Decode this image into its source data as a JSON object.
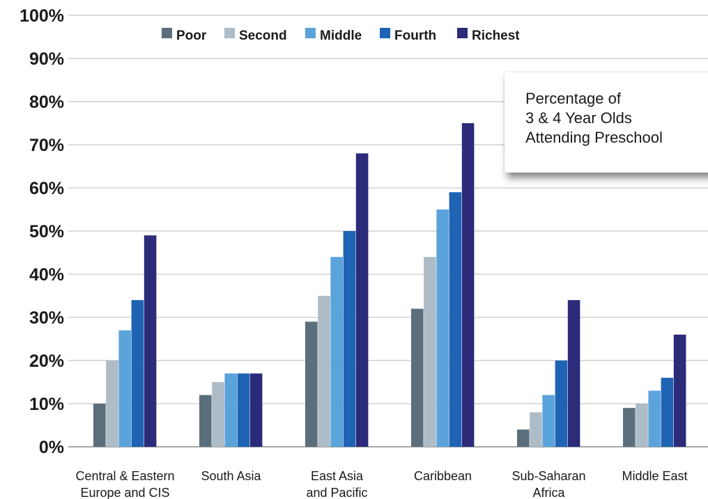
{
  "chart_data": {
    "type": "bar",
    "categories": [
      "Central & Eastern\nEurope and CIS",
      "South Asia",
      "East Asia\nand Pacific",
      "Caribbean",
      "Sub-Saharan\nAfrica",
      "Middle East"
    ],
    "series": [
      {
        "name": "Poor",
        "color": "#5b6e7b",
        "values": [
          10,
          12,
          29,
          32,
          4,
          9
        ]
      },
      {
        "name": "Second",
        "color": "#adbcc7",
        "values": [
          20,
          15,
          35,
          44,
          8,
          10
        ]
      },
      {
        "name": "Middle",
        "color": "#5ba3db",
        "values": [
          27,
          17,
          44,
          55,
          12,
          13
        ]
      },
      {
        "name": "Fourth",
        "color": "#1e63b4",
        "values": [
          34,
          17,
          50,
          59,
          20,
          16
        ]
      },
      {
        "name": "Richest",
        "color": "#2b2b7a",
        "values": [
          49,
          17,
          68,
          75,
          34,
          26
        ]
      }
    ],
    "yticks": [
      "0%",
      "10%",
      "20%",
      "30%",
      "40%",
      "50%",
      "60%",
      "70%",
      "80%",
      "90%",
      "100%"
    ],
    "ylim": [
      0,
      100
    ],
    "grid": true,
    "legend_position": "top",
    "annotation": "Percentage of\n3 & 4 Year Olds\nAttending Preschool"
  }
}
